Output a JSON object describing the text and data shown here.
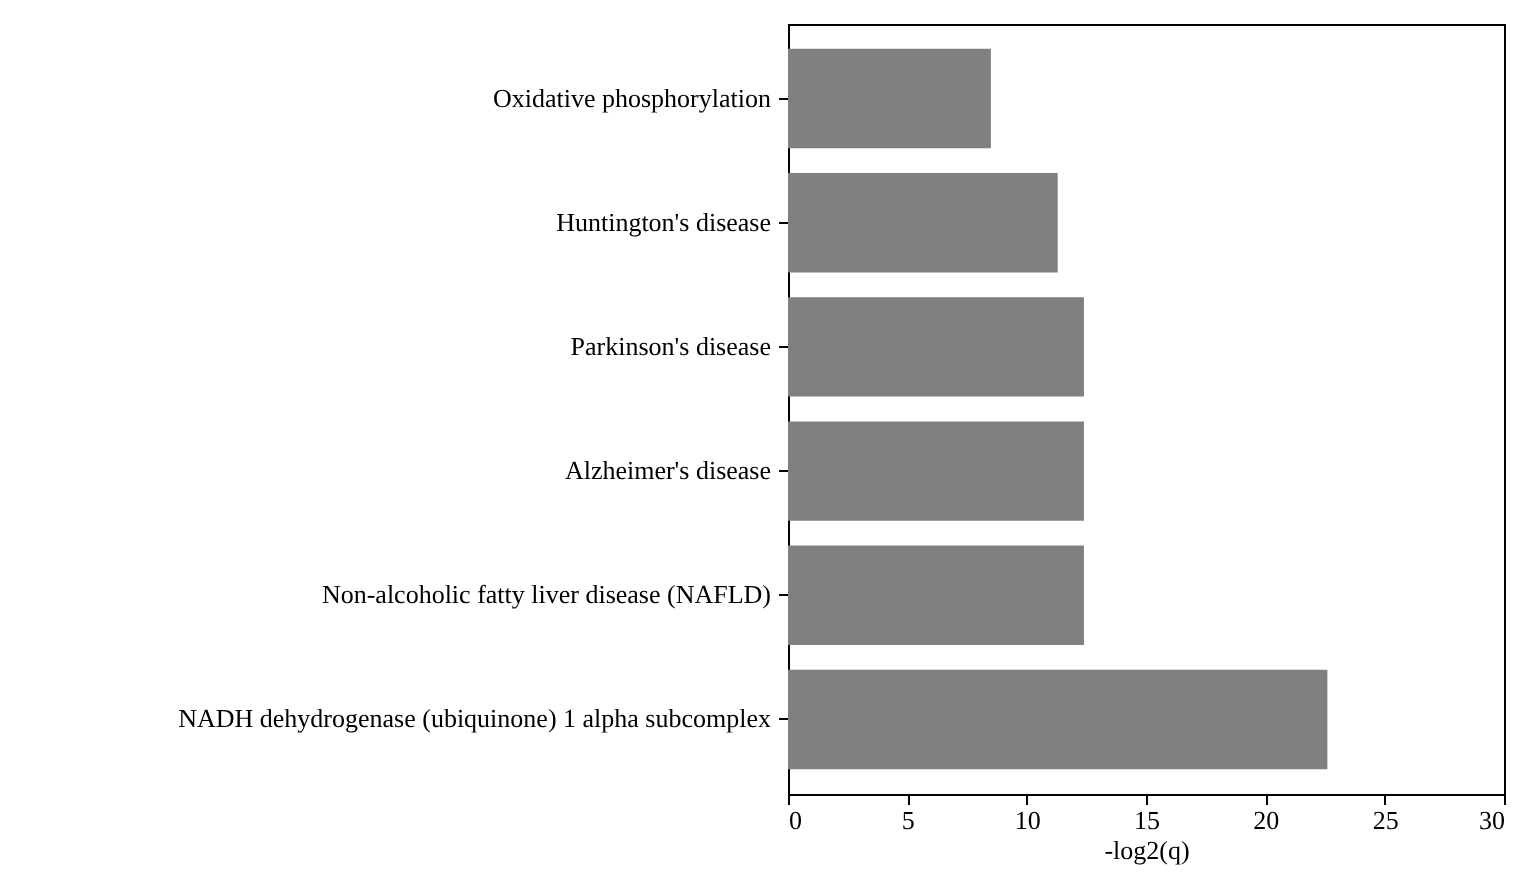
{
  "chart_data": {
    "type": "bar",
    "orientation": "horizontal",
    "xlabel": "-log2(q)",
    "categories": [
      "Oxidative phosphorylation",
      "Huntington's disease",
      "Parkinson's disease",
      "Alzheimer's disease",
      "Non-alcoholic fatty liver disease (NAFLD)",
      "NADH dehydrogenase (ubiquinone) 1 alpha subcomplex"
    ],
    "values": [
      8.5,
      11.3,
      12.4,
      12.4,
      12.4,
      22.6
    ],
    "color": "#808080",
    "xlim": [
      0,
      30
    ],
    "xticks": [
      0,
      5,
      10,
      15,
      20,
      25,
      30
    ],
    "grid": false
  }
}
